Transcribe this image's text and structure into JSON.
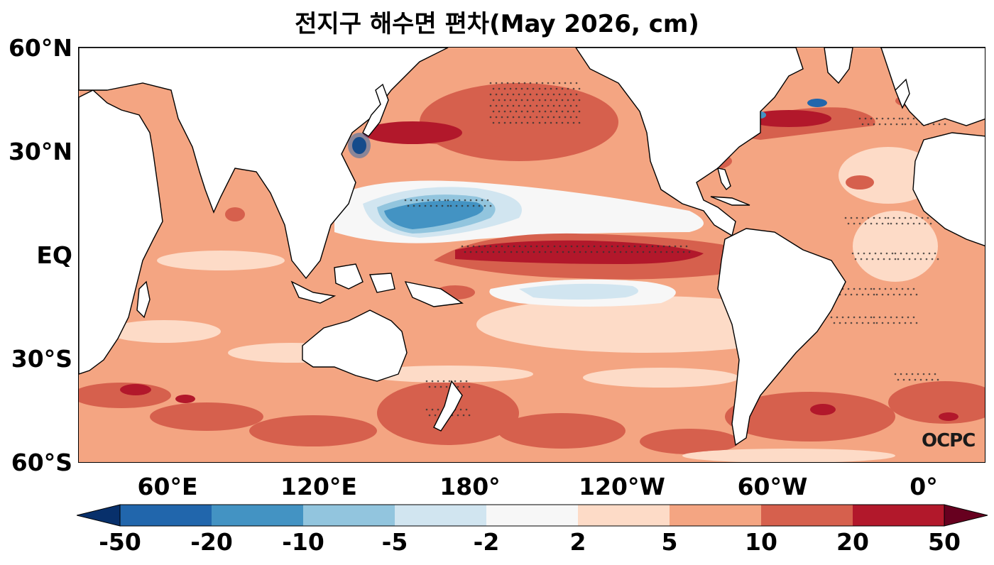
{
  "title": "전지구 해수면 편차(May 2026, cm)",
  "y_axis_labels": [
    "60°N",
    "30°N",
    "EQ",
    "30°S",
    "60°S"
  ],
  "x_axis_labels": [
    "60°E",
    "120°E",
    "180°",
    "120°W",
    "60°W",
    "0°"
  ],
  "colorbar": {
    "tick_labels": [
      "-50",
      "-20",
      "-10",
      "-5",
      "-2",
      "2",
      "5",
      "10",
      "20",
      "50"
    ],
    "colors": [
      "#08306b",
      "#2166ac",
      "#4393c3",
      "#92c5de",
      "#d1e5f0",
      "#f7f7f7",
      "#fddbc7",
      "#f4a582",
      "#d6604d",
      "#b2182b",
      "#67001f"
    ]
  },
  "logo": "OCPC",
  "map": {
    "projection": "equirectangular",
    "lon_range": [
      25,
      385
    ],
    "lat_range": [
      -60,
      60
    ],
    "variable": "sea level anomaly",
    "units": "cm",
    "stippling": "significance"
  }
}
